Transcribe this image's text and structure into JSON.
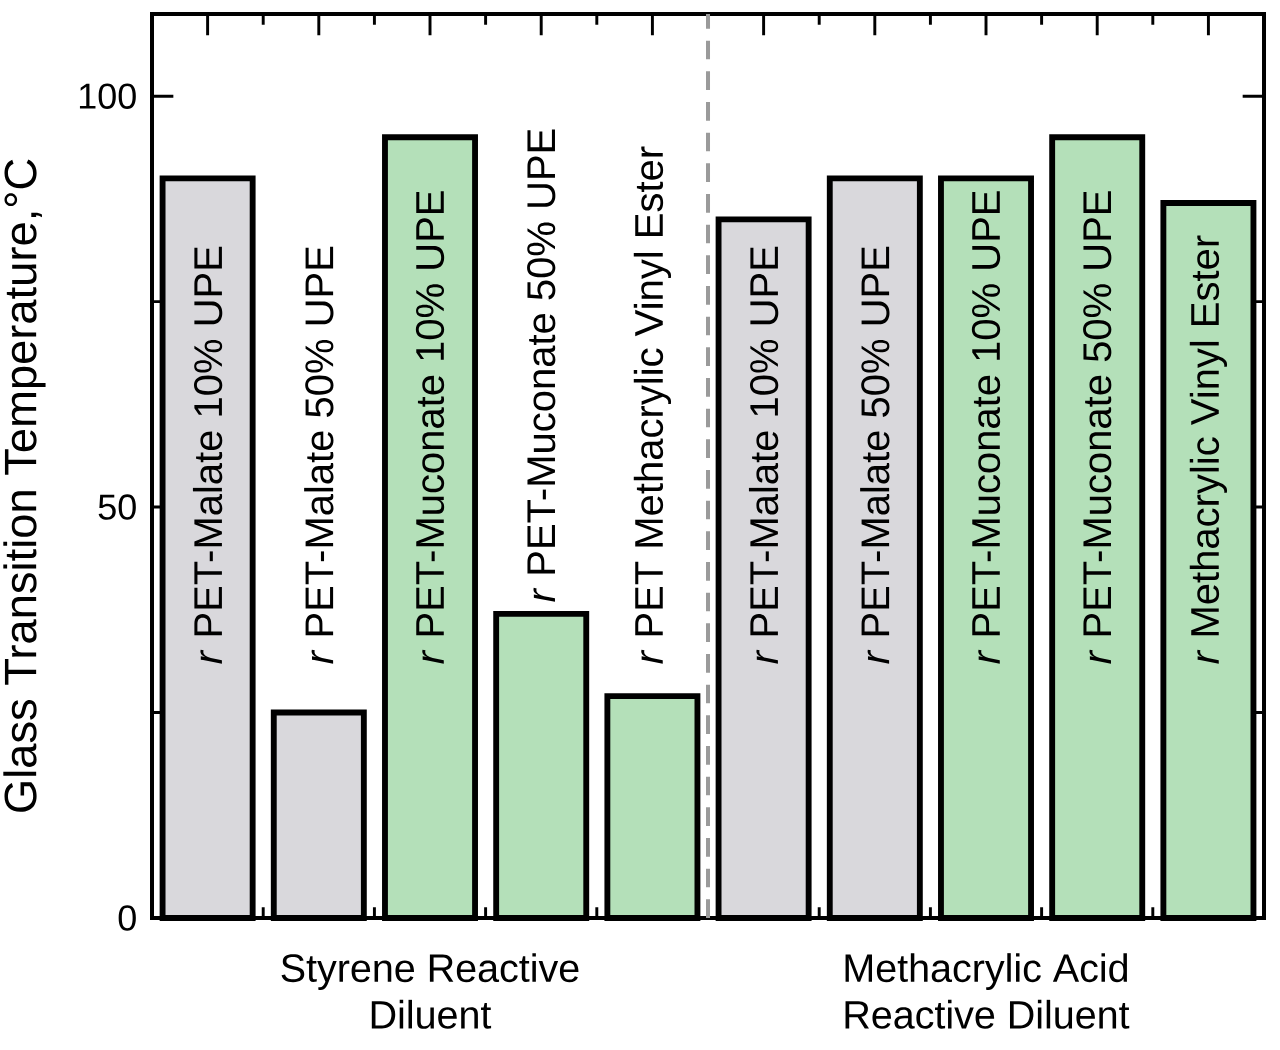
{
  "chart_data": {
    "type": "bar",
    "ylabel": "Glass Transition Temperature,°C",
    "categories": [
      "*r* PET-Malate 10% UPE",
      "*r* PET-Malate 50% UPE",
      "*r* PET-Muconate 10% UPE",
      "*r* PET-Muconate 50% UPE",
      "*r* PET Methacrylic Vinyl Ester",
      "*r* PET-Malate 10% UPE",
      "*r* PET-Malate 50% UPE",
      "*r* PET-Muconate 10% UPE",
      "*r* PET-Muconate 50% UPE",
      "*r* Methacrylic Vinyl Ester"
    ],
    "values": [
      90,
      25,
      95,
      37,
      27,
      85,
      90,
      90,
      95,
      87
    ],
    "colors": [
      "#d9d8dc",
      "#d9d8dc",
      "#b4e0b9",
      "#b4e0b9",
      "#b4e0b9",
      "#d9d8dc",
      "#d9d8dc",
      "#b4e0b9",
      "#b4e0b9",
      "#b4e0b9"
    ],
    "ylim": [
      0,
      110
    ],
    "yticks": [
      0,
      {
        "value": 25,
        "label": null
      },
      50,
      {
        "value": 75,
        "label": null
      },
      100
    ],
    "annotations": [
      "Styrene Reactive Diluent",
      "Methacrylic Acid Reactive Diluent"
    ],
    "grid": false
  }
}
